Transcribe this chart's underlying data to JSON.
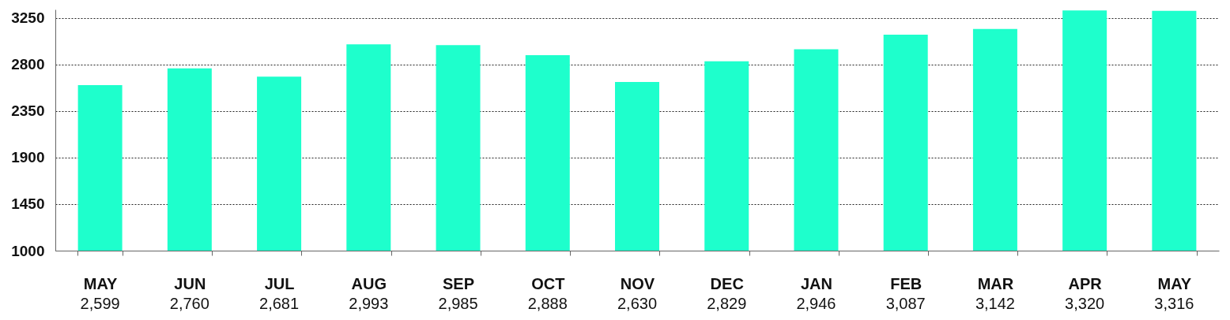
{
  "chart_data": {
    "type": "bar",
    "categories": [
      "MAY",
      "JUN",
      "JUL",
      "AUG",
      "SEP",
      "OCT",
      "NOV",
      "DEC",
      "JAN",
      "FEB",
      "MAR",
      "APR",
      "MAY"
    ],
    "values": [
      2599,
      2760,
      2681,
      2993,
      2985,
      2888,
      2630,
      2829,
      2946,
      3087,
      3142,
      3320,
      3316
    ],
    "color": "#1effcc",
    "ylim": [
      1000,
      3330
    ],
    "yticks": [
      1000,
      1450,
      1900,
      2350,
      2800,
      3250
    ],
    "value_labels": [
      "2,599",
      "2,760",
      "2,681",
      "2,993",
      "2,985",
      "2,888",
      "2,630",
      "2,829",
      "2,946",
      "3,087",
      "3,142",
      "3,320",
      "3,316"
    ],
    "grid": "y"
  }
}
